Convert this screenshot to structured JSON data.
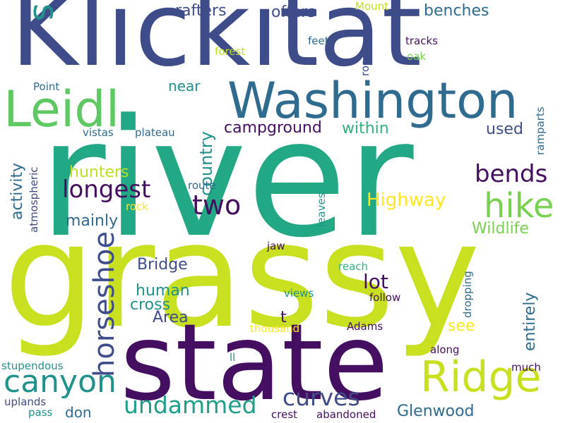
{
  "words": [
    {
      "text": "river",
      "color": "#22a884"
    },
    {
      "text": "grassy",
      "color": "#c8e020"
    },
    {
      "text": "Klickitat",
      "color": "#3e4c8a"
    },
    {
      "text": "state",
      "color": "#440f60"
    },
    {
      "text": "Leidl",
      "color": "#5ec962"
    },
    {
      "text": "Washington",
      "color": "#2f6b8e"
    },
    {
      "text": "Ridge",
      "color": "#c8e020"
    },
    {
      "text": "canyon",
      "color": "#21918c"
    },
    {
      "text": "hike",
      "color": "#7ad151"
    },
    {
      "text": "s",
      "color": "#21918c"
    },
    {
      "text": "longest",
      "color": "#440f60"
    },
    {
      "text": "two",
      "color": "#440f60"
    },
    {
      "text": "bends",
      "color": "#440f60"
    },
    {
      "text": "horseshoe",
      "color": "#3e4c8a"
    },
    {
      "text": "undammed",
      "color": "#1f9e89"
    },
    {
      "text": "curves",
      "color": "#3e4c8a"
    },
    {
      "text": "campground",
      "color": "#440f60"
    },
    {
      "text": "Highway",
      "color": "#fde725"
    },
    {
      "text": "Wildlife",
      "color": "#7ad151"
    },
    {
      "text": "country",
      "color": "#21918c"
    },
    {
      "text": "rafters",
      "color": "#3e4c8a"
    },
    {
      "text": "offers",
      "color": "#3e4c8a"
    },
    {
      "text": "benches",
      "color": "#2f6b8e"
    },
    {
      "text": "within",
      "color": "#2fb47c"
    },
    {
      "text": "used",
      "color": "#3e4c8a"
    },
    {
      "text": "near",
      "color": "#21918c"
    },
    {
      "text": "hunters",
      "color": "#bddf26"
    },
    {
      "text": "mainly",
      "color": "#2f6b8e"
    },
    {
      "text": "activity",
      "color": "#2f6b8e"
    },
    {
      "text": "Bridge",
      "color": "#3e4c8a"
    },
    {
      "text": "human",
      "color": "#21918c"
    },
    {
      "text": "cross",
      "color": "#21918c"
    },
    {
      "text": "Area",
      "color": "#3e4c8a"
    },
    {
      "text": "lot",
      "color": "#440f60"
    },
    {
      "text": "t",
      "color": "#440f60"
    },
    {
      "text": "see",
      "color": "#fde725"
    },
    {
      "text": "entirely",
      "color": "#2f6b8e"
    },
    {
      "text": "Glenwood",
      "color": "#2f6b8e"
    },
    {
      "text": "don",
      "color": "#2f6b8e"
    },
    {
      "text": "Mount",
      "color": "#c8e020"
    },
    {
      "text": "feet",
      "color": "#2f6b8e"
    },
    {
      "text": "road",
      "color": "#3e4c8a"
    },
    {
      "text": "tracks",
      "color": "#440f60"
    },
    {
      "text": "oak",
      "color": "#7ad151"
    },
    {
      "text": "forest",
      "color": "#bddf26"
    },
    {
      "text": "Point",
      "color": "#2f6b8e"
    },
    {
      "text": "vistas",
      "color": "#2f6b8e"
    },
    {
      "text": "plateau",
      "color": "#2f6b8e"
    },
    {
      "text": "ramparts",
      "color": "#2f6b8e"
    },
    {
      "text": "route",
      "color": "#2f6b8e"
    },
    {
      "text": "rock",
      "color": "#fde725"
    },
    {
      "text": "atmospheric",
      "color": "#3e4c8a"
    },
    {
      "text": "leaves",
      "color": "#21918c"
    },
    {
      "text": "jaw",
      "color": "#440f60"
    },
    {
      "text": "reach",
      "color": "#2fb47c"
    },
    {
      "text": "views",
      "color": "#21918c"
    },
    {
      "text": "follow",
      "color": "#440f60"
    },
    {
      "text": "dropping",
      "color": "#2f6b8e"
    },
    {
      "text": "thousand",
      "color": "#fde725"
    },
    {
      "text": "Adams",
      "color": "#440f60"
    },
    {
      "text": "along",
      "color": "#440f60"
    },
    {
      "text": "ll",
      "color": "#21918c"
    },
    {
      "text": "stupendous",
      "color": "#21918c"
    },
    {
      "text": "much",
      "color": "#440f60"
    },
    {
      "text": "uplands",
      "color": "#3e4c8a"
    },
    {
      "text": "pass",
      "color": "#21918c"
    },
    {
      "text": "crest",
      "color": "#440f60"
    },
    {
      "text": "abandoned",
      "color": "#440f60"
    }
  ]
}
